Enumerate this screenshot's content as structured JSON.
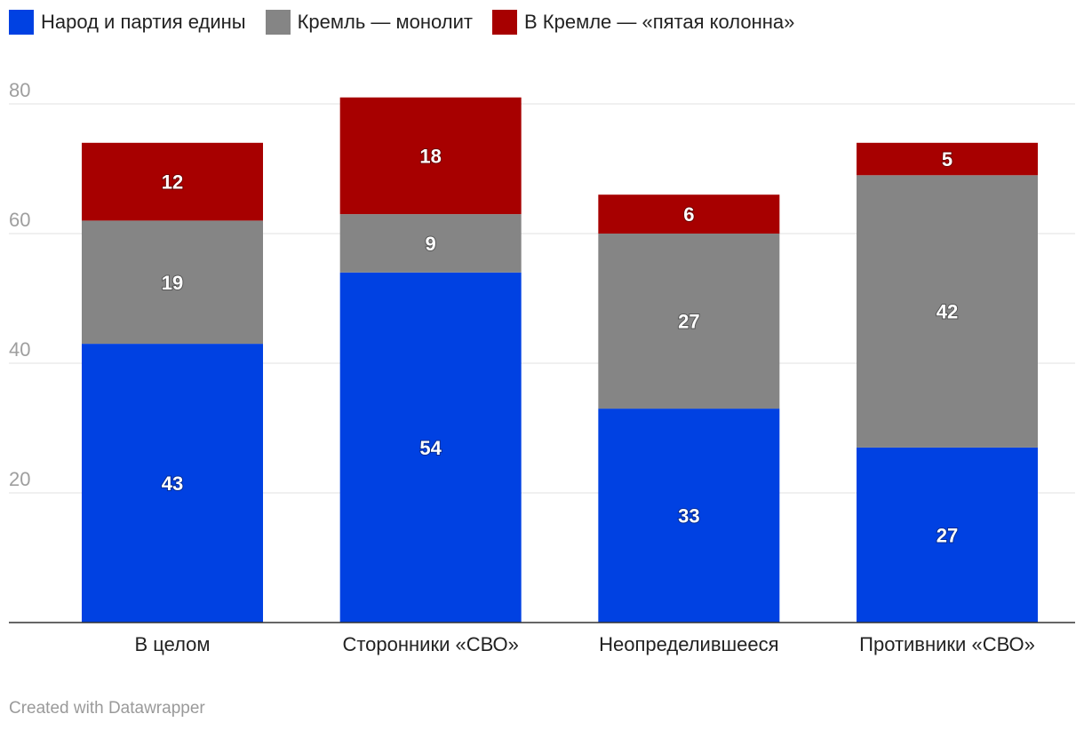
{
  "chart_data": {
    "type": "bar",
    "stacked": true,
    "categories": [
      "В целом",
      "Сторонники «СВО»",
      "Неопределившееся",
      "Противники «СВО»"
    ],
    "series": [
      {
        "name": "Народ и партия едины",
        "color": "#0041e2",
        "values": [
          43,
          54,
          33,
          27
        ]
      },
      {
        "name": "Кремль — монолит",
        "color": "#858585",
        "values": [
          19,
          9,
          27,
          42
        ]
      },
      {
        "name": "В Кремле — «пятая колонна»",
        "color": "#a70000",
        "values": [
          12,
          18,
          6,
          5
        ]
      }
    ],
    "yticks": [
      20,
      40,
      60,
      80
    ],
    "ylim": [
      0,
      82
    ],
    "grid": true,
    "legend": "top-left"
  },
  "credit": "Created with Datawrapper"
}
